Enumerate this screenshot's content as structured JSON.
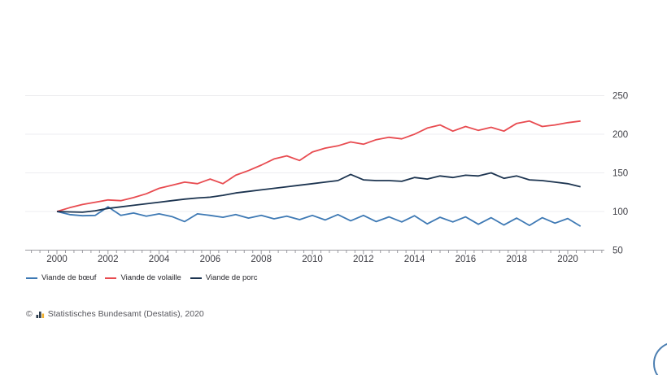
{
  "chart_data": {
    "type": "line",
    "title": "",
    "xlabel": "",
    "ylabel": "",
    "x_unit": "year",
    "grid": "horizontal",
    "legend_position": "bottom-left",
    "ylim": [
      50,
      250
    ],
    "y_ticks": [
      50,
      100,
      150,
      200,
      250
    ],
    "x_range": [
      2000,
      2020.5
    ],
    "x_tick_labels": [
      "2000",
      "2002",
      "2004",
      "2006",
      "2008",
      "2010",
      "2012",
      "2014",
      "2016",
      "2018",
      "2020"
    ],
    "x": [
      2000,
      2000.5,
      2001,
      2001.5,
      2002,
      2002.5,
      2003,
      2003.5,
      2004,
      2004.5,
      2005,
      2005.5,
      2006,
      2006.5,
      2007,
      2007.5,
      2008,
      2008.5,
      2009,
      2009.5,
      2010,
      2010.5,
      2011,
      2011.5,
      2012,
      2012.5,
      2013,
      2013.5,
      2014,
      2014.5,
      2015,
      2015.5,
      2016,
      2016.5,
      2017,
      2017.5,
      2018,
      2018.5,
      2019,
      2019.5,
      2020,
      2020.5
    ],
    "series": [
      {
        "name": "Viande de bœuf",
        "color": "#3e79b4",
        "values": [
          100,
          96,
          94.5,
          95,
          106,
          95,
          98,
          94,
          97,
          93.5,
          87,
          97,
          95,
          92.5,
          96,
          91.5,
          95,
          90.5,
          94,
          89.5,
          95,
          89,
          96,
          88,
          95,
          87,
          93,
          86.5,
          94.5,
          84,
          92.5,
          86.5,
          93,
          83.5,
          92,
          82.5,
          91.5,
          82,
          92,
          85,
          91,
          81
        ]
      },
      {
        "name": "Viande de volaille",
        "color": "#e84b50",
        "values": [
          100,
          105,
          109,
          112,
          115,
          114,
          118,
          123,
          130,
          134,
          138,
          136,
          142,
          136,
          147,
          153,
          160,
          168,
          172,
          166,
          177,
          182,
          185,
          190,
          187,
          193,
          196,
          194,
          200,
          208,
          212,
          204,
          210,
          205,
          209,
          204,
          214,
          217,
          210,
          212,
          215,
          217
        ]
      },
      {
        "name": "Viande de porc",
        "color": "#1c3450",
        "values": [
          100,
          99.5,
          99,
          101,
          104,
          106,
          108,
          110,
          112,
          114,
          116,
          117.5,
          118.5,
          121,
          124,
          126,
          128,
          130,
          132,
          134,
          136,
          138,
          140,
          148,
          141,
          140,
          140,
          139,
          144,
          142,
          146,
          144,
          147,
          146,
          150,
          143,
          146,
          141,
          140,
          138,
          136,
          132
        ]
      }
    ]
  },
  "colors": {
    "grid": "#ededf0",
    "axis": "#9b9ba1",
    "tick_label": "#3f3f46",
    "fab_border": "#4e80b2",
    "icon_gold": "#f0b02f",
    "icon_dark": "#2a3b4d"
  },
  "source": {
    "copyright": "©",
    "text": "Statistisches Bundesamt (Destatis), 2020"
  }
}
